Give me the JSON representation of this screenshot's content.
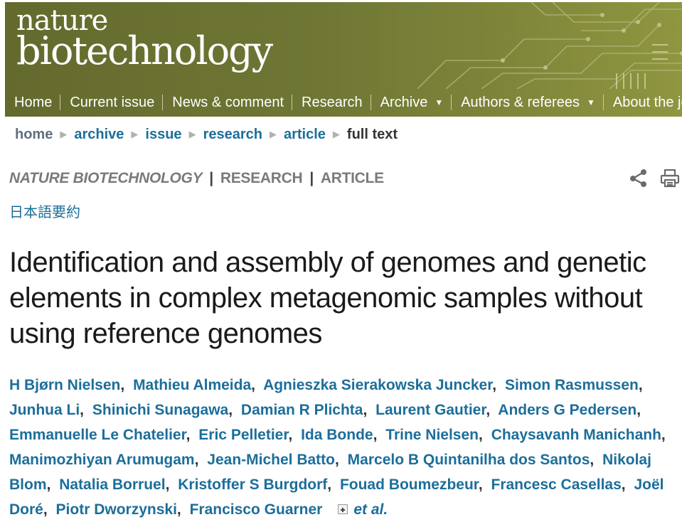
{
  "masthead": {
    "logo_line1": "nature",
    "logo_line2": "biotechnology"
  },
  "nav": {
    "items": [
      {
        "label": "Home"
      },
      {
        "label": "Current issue"
      },
      {
        "label": "News & comment"
      },
      {
        "label": "Research"
      },
      {
        "label": "Archive",
        "dropdown": true
      },
      {
        "label": "Authors & referees",
        "dropdown": true
      },
      {
        "label": "About the jo"
      }
    ]
  },
  "breadcrumb": {
    "home": "home",
    "archive": "archive",
    "issue": "issue",
    "research": "research",
    "article": "article",
    "current": "full text"
  },
  "section": {
    "journal": "NATURE BIOTECHNOLOGY",
    "type": "RESEARCH",
    "subtype": "ARTICLE",
    "separator": "|"
  },
  "tools": {
    "share_icon": "share-icon",
    "print_icon": "print-icon"
  },
  "japanese_summary": "日本語要約",
  "article": {
    "title": "Identification and assembly of genomes and genetic elements in complex metagenomic samples without using reference genomes",
    "authors": [
      "H Bjørn Nielsen",
      "Mathieu Almeida",
      "Agnieszka Sierakowska Juncker",
      "Simon Rasmussen",
      "Junhua Li",
      "Shinichi Sunagawa",
      "Damian R Plichta",
      "Laurent Gautier",
      "Anders G Pedersen",
      "Emmanuelle Le Chatelier",
      "Eric Pelletier",
      "Ida Bonde",
      "Trine Nielsen",
      "Chaysavanh Manichanh",
      "Manimozhiyan Arumugam",
      "Jean-Michel Batto",
      "Marcelo B Quintanilha dos Santos",
      "Nikolaj Blom",
      "Natalia Borruel",
      "Kristoffer S Burgdorf",
      "Fouad Boumezbeur",
      "Francesc Casellas",
      "Joël Doré",
      "Piotr Dworzynski",
      "Francisco Guarner"
    ],
    "et_al": "et al."
  },
  "colors": {
    "masthead": "#6f7634",
    "link": "#1c6e9a",
    "section_label": "#7a7a7a"
  }
}
